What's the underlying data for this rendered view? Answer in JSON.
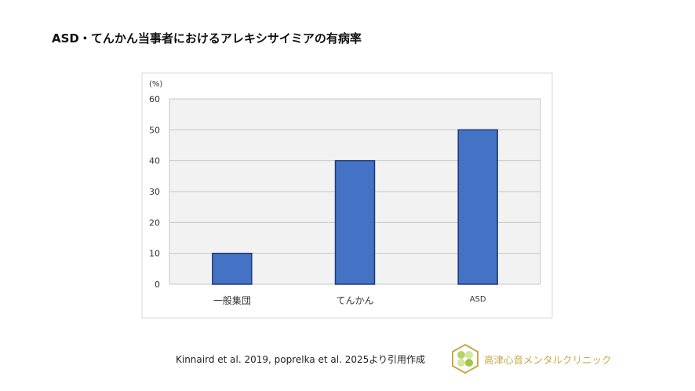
{
  "title": "ASD・てんかん当事者におけるアレキシサイミアの有病率",
  "chart_data": {
    "type": "bar",
    "title": "",
    "ylabel": "(%)",
    "xlabel": "",
    "categories": [
      "一般集団",
      "てんかん",
      "ASD"
    ],
    "values": [
      10,
      40,
      50
    ],
    "ylim": [
      0,
      60
    ],
    "yticks": [
      0,
      10,
      20,
      30,
      40,
      50,
      60
    ],
    "grid": true,
    "colors": {
      "bar": "#4472c4",
      "bar_edge": "#1f3a7a",
      "plot_bg": "#f2f2f2",
      "grid": "#c8c8c8"
    }
  },
  "source": "Kinnaird et al. 2019, poprelka et al. 2025より引用作成",
  "logo": {
    "clinic_name": "高津心音メンタルクリニック",
    "color": "#c9a84a"
  }
}
